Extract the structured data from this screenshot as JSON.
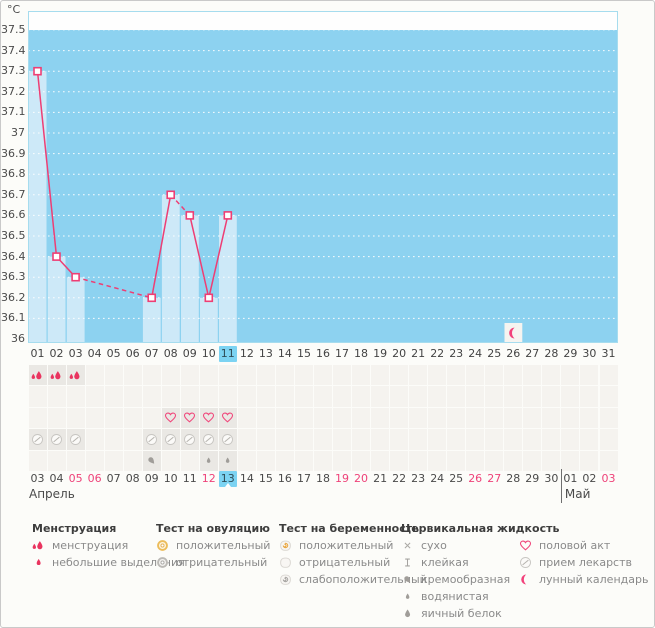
{
  "unit_label": "°C",
  "colors": {
    "chart_blue": "#8dd2f0",
    "bar_blue": "#cde9f8",
    "plot_border": "#a6dcee",
    "line_pink": "#ee3e74",
    "highlight_blue": "#7cd3f2",
    "menses_pink": "#e9345f",
    "gray_icon": "#a09d99",
    "amber": "#ecbc5a",
    "weekend_pink": "#ee4279"
  },
  "chart_data": {
    "type": "line",
    "ylabel": "°C",
    "ylim": [
      36,
      37.5
    ],
    "ytick_labels": [
      "37.5",
      "37.4",
      "37.3",
      "37.2",
      "37.1",
      "37",
      "36.9",
      "36.8",
      "36.7",
      "36.6",
      "36.5",
      "36.4",
      "36.3",
      "36.2",
      "36.1",
      "36"
    ],
    "x_categories": [
      "01",
      "02",
      "03",
      "04",
      "05",
      "06",
      "07",
      "08",
      "09",
      "10",
      "11",
      "12",
      "13",
      "14",
      "15",
      "16",
      "17",
      "18",
      "19",
      "20",
      "21",
      "22",
      "23",
      "24",
      "25",
      "26",
      "27",
      "28",
      "29",
      "30",
      "31"
    ],
    "highlighted_day": 11,
    "grid": "horizontal-white-dotted",
    "legend_position": "bottom",
    "series": [
      {
        "name": "temperature",
        "points": [
          {
            "day": 1,
            "temp": 37.3
          },
          {
            "day": 2,
            "temp": 36.4
          },
          {
            "day": 3,
            "temp": 36.3
          },
          {
            "day": 7,
            "temp": 36.2
          },
          {
            "day": 8,
            "temp": 36.7
          },
          {
            "day": 9,
            "temp": 36.6
          },
          {
            "day": 10,
            "temp": 36.2
          },
          {
            "day": 11,
            "temp": 36.6
          }
        ]
      }
    ],
    "dashed_segments": [
      [
        3,
        7
      ],
      [
        8,
        9
      ]
    ],
    "measured_day_bars": [
      1,
      2,
      3,
      7,
      8,
      9,
      10,
      11
    ],
    "moon_marker_day": 26
  },
  "event_rows": [
    {
      "name": "menstruation-row",
      "cells": [
        {
          "day": 1,
          "icon": "menses-drops"
        },
        {
          "day": 2,
          "icon": "menses-drops"
        },
        {
          "day": 3,
          "icon": "menses-drops"
        }
      ]
    },
    {
      "name": "ovulation-test-row",
      "cells": []
    },
    {
      "name": "intercourse-row",
      "cells": [
        {
          "day": 8,
          "icon": "heart"
        },
        {
          "day": 9,
          "icon": "heart"
        },
        {
          "day": 10,
          "icon": "heart"
        },
        {
          "day": 11,
          "icon": "heart"
        }
      ]
    },
    {
      "name": "medication-row",
      "cells": [
        {
          "day": 1,
          "icon": "pill"
        },
        {
          "day": 2,
          "icon": "pill"
        },
        {
          "day": 3,
          "icon": "pill"
        },
        {
          "day": 7,
          "icon": "pill"
        },
        {
          "day": 8,
          "icon": "pill"
        },
        {
          "day": 9,
          "icon": "pill"
        },
        {
          "day": 10,
          "icon": "pill"
        },
        {
          "day": 11,
          "icon": "pill"
        }
      ]
    },
    {
      "name": "cervical-fluid-row",
      "cells": [
        {
          "day": 7,
          "icon": "creamy"
        },
        {
          "day": 10,
          "icon": "watery"
        },
        {
          "day": 11,
          "icon": "watery"
        }
      ]
    }
  ],
  "dates_row": {
    "labels": [
      "03",
      "04",
      "05",
      "06",
      "07",
      "08",
      "09",
      "10",
      "11",
      "12",
      "13",
      "14",
      "15",
      "16",
      "17",
      "18",
      "19",
      "20",
      "21",
      "22",
      "23",
      "24",
      "25",
      "26",
      "27",
      "28",
      "29",
      "30",
      "01",
      "02",
      "03"
    ],
    "weekend_indices": [
      2,
      3,
      9,
      16,
      17,
      23,
      24,
      30
    ],
    "highlighted_index": 10,
    "month_break_index": 28
  },
  "months": {
    "april": "Апрель",
    "may": "Май"
  },
  "legend": {
    "sections": [
      {
        "title": "Менструация",
        "items": [
          {
            "icon": "menses-drops",
            "label": "менструация"
          },
          {
            "icon": "small-drop",
            "label": "небольшие выделения"
          }
        ]
      },
      {
        "title": "Тест на овуляцию",
        "items": [
          {
            "icon": "test-positive",
            "label": "положительный"
          },
          {
            "icon": "test-negative",
            "label": "отрицательный"
          }
        ]
      },
      {
        "title": "Тест на беременность",
        "items": [
          {
            "icon": "preg-positive",
            "label": "положительный"
          },
          {
            "icon": "preg-negative",
            "label": "отрицательный"
          },
          {
            "icon": "preg-weak",
            "label": "слабоположительный"
          }
        ]
      },
      {
        "title": "Цервикальная жидкость",
        "items": [
          {
            "icon": "dry",
            "label": "сухо"
          },
          {
            "icon": "sticky",
            "label": "клейкая"
          },
          {
            "icon": "creamy",
            "label": "кремообразная"
          },
          {
            "icon": "watery",
            "label": "водянистая"
          },
          {
            "icon": "eggwhite",
            "label": "яичный белок"
          }
        ]
      },
      {
        "title": "",
        "items": [
          {
            "icon": "heart",
            "label": "половой акт"
          },
          {
            "icon": "pill",
            "label": "прием лекарств"
          },
          {
            "icon": "moon",
            "label": "лунный календарь"
          }
        ]
      }
    ]
  }
}
